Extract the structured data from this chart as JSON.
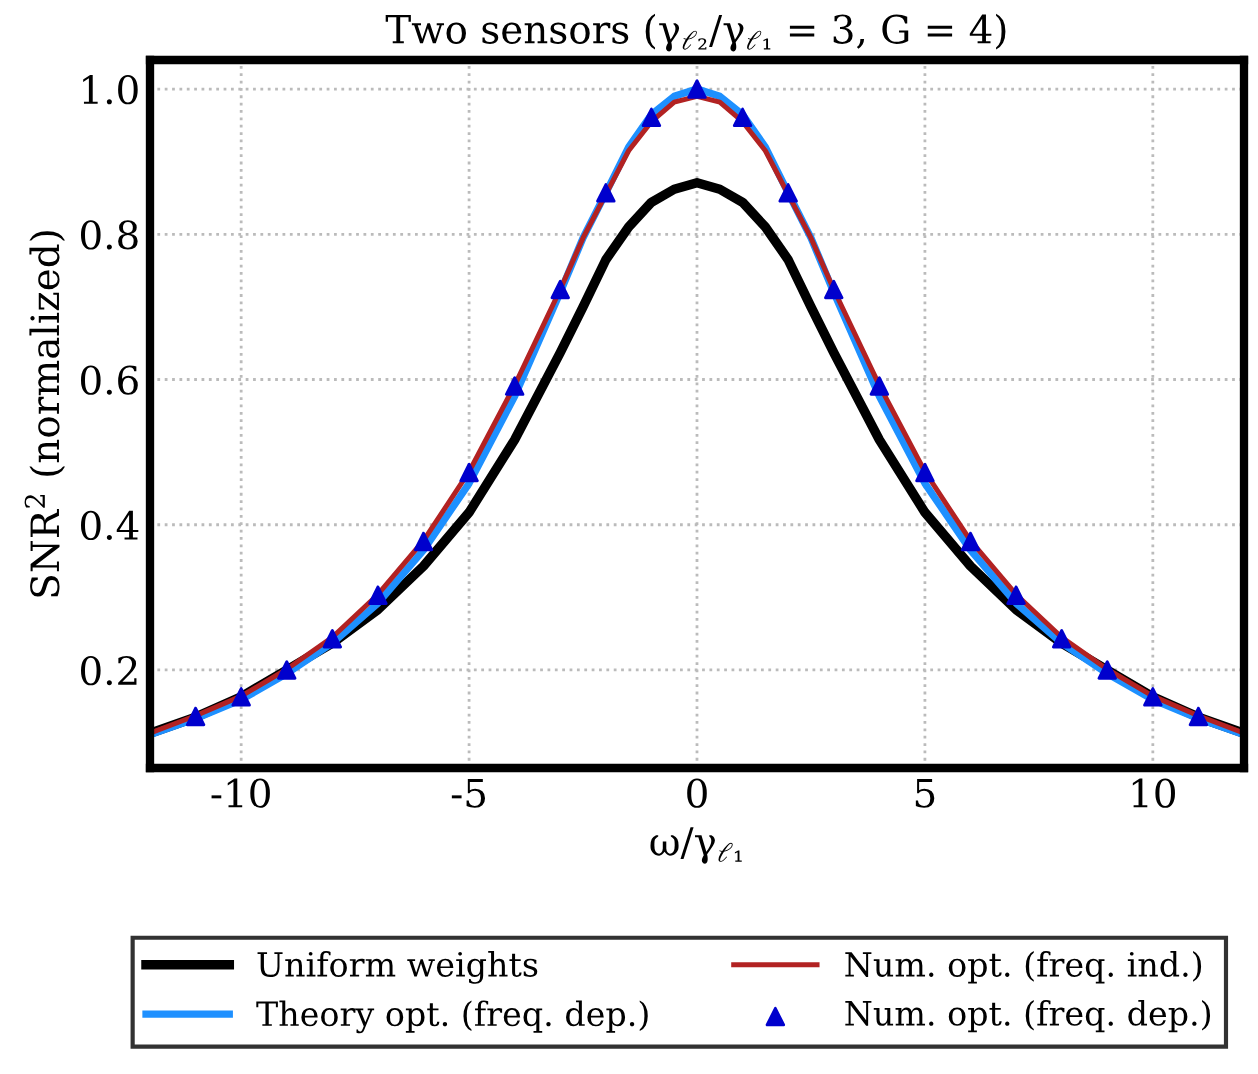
{
  "chart_data": {
    "type": "line",
    "title": "Two sensors (γ$_{ℓ₂}$/γ$_{ℓ₁}$ = 3, G = 4)",
    "xlabel": "ω/γ$_{ℓ₁}$",
    "ylabel": "SNR$^{2}$ (normalized)",
    "xlim": [
      -12,
      12
    ],
    "ylim": [
      0.065,
      1.04
    ],
    "xticks": [
      -10,
      -5,
      0,
      5,
      10
    ],
    "yticks": [
      0.2,
      0.4,
      0.6,
      0.8,
      {
        "value": 1,
        "label": "1.0"
      }
    ],
    "grid": true,
    "legend": "bottom",
    "x": [
      -12,
      -11,
      -10,
      -9,
      -8,
      -7,
      -6,
      -5,
      -4,
      -3,
      -2.5,
      -2,
      -1.5,
      -1,
      -0.5,
      0,
      0.5,
      1,
      1.5,
      2,
      2.5,
      3,
      4,
      5,
      6,
      7,
      8,
      9,
      10,
      11,
      12
    ],
    "series": [
      {
        "name": "Uniform weights",
        "color": "#000000",
        "values": [
          0.113,
          0.135,
          0.163,
          0.2,
          0.237,
          0.283,
          0.343,
          0.417,
          0.517,
          0.637,
          0.7,
          0.765,
          0.81,
          0.844,
          0.862,
          0.871,
          0.862,
          0.844,
          0.81,
          0.765,
          0.7,
          0.637,
          0.517,
          0.417,
          0.343,
          0.283,
          0.237,
          0.2,
          0.163,
          0.135,
          0.113
        ]
      },
      {
        "name": "Theory opt. (freq. dep.)",
        "color": "#1e90ff",
        "values": [
          0.111,
          0.133,
          0.159,
          0.195,
          0.237,
          0.292,
          0.365,
          0.457,
          0.577,
          0.72,
          0.795,
          0.857,
          0.92,
          0.965,
          0.99,
          1.0,
          0.99,
          0.965,
          0.92,
          0.857,
          0.795,
          0.72,
          0.577,
          0.457,
          0.365,
          0.292,
          0.237,
          0.195,
          0.159,
          0.133,
          0.111
        ]
      },
      {
        "name": "Num. opt. (freq. ind.)",
        "color": "#b22222",
        "values": [
          0.113,
          0.137,
          0.164,
          0.201,
          0.245,
          0.304,
          0.378,
          0.473,
          0.592,
          0.724,
          0.795,
          0.855,
          0.915,
          0.955,
          0.982,
          0.99,
          0.982,
          0.955,
          0.915,
          0.855,
          0.795,
          0.724,
          0.592,
          0.473,
          0.378,
          0.304,
          0.245,
          0.201,
          0.164,
          0.137,
          0.113
        ]
      },
      {
        "name": "Num. opt. (freq. dep.)",
        "type": "scatter",
        "marker": "triangle",
        "color": "#0000cd",
        "x": [
          -11,
          -10,
          -9,
          -8,
          -7,
          -6,
          -5,
          -4,
          -3,
          -2,
          -1,
          0,
          1,
          2,
          3,
          4,
          5,
          6,
          7,
          8,
          9,
          10,
          11
        ],
        "values": [
          0.136,
          0.163,
          0.2,
          0.243,
          0.303,
          0.377,
          0.472,
          0.591,
          0.724,
          0.857,
          0.961,
          1.0,
          0.961,
          0.857,
          0.724,
          0.591,
          0.472,
          0.377,
          0.303,
          0.243,
          0.2,
          0.163,
          0.136
        ]
      }
    ]
  }
}
